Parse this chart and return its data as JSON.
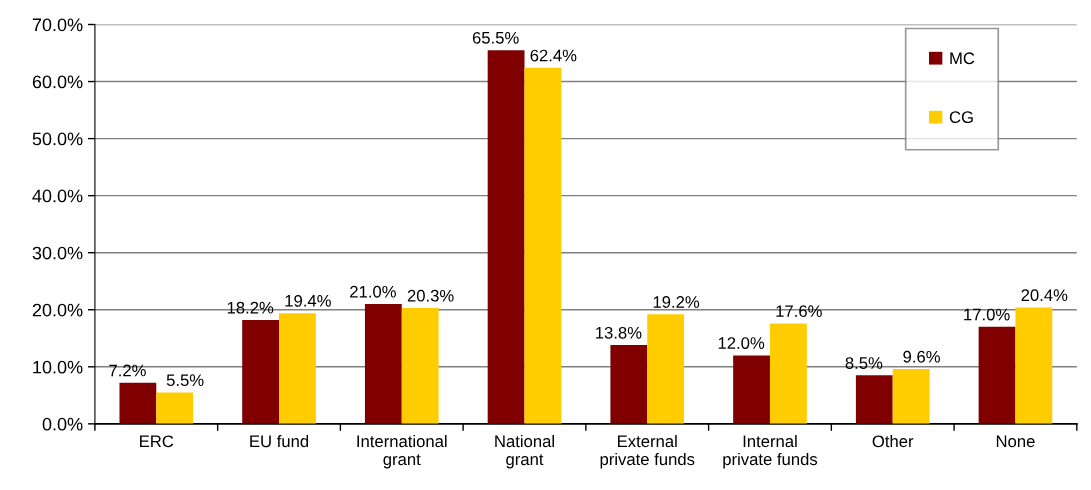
{
  "chart_data": {
    "type": "bar",
    "categories": [
      "ERC",
      "EU fund",
      "International grant",
      "National grant",
      "External private funds",
      "Internal private funds",
      "Other",
      "None"
    ],
    "series": [
      {
        "name": "MC",
        "color": "#800000",
        "values": [
          7.2,
          18.2,
          21.0,
          65.5,
          13.8,
          12.0,
          8.5,
          17.0
        ],
        "value_labels": [
          "7.2%",
          "18.2%",
          "21.0%",
          "65.5%",
          "13.8%",
          "12.0%",
          "8.5%",
          "17.0%"
        ]
      },
      {
        "name": "CG",
        "color": "#ffcc00",
        "values": [
          5.5,
          19.4,
          20.3,
          62.4,
          19.2,
          17.6,
          9.6,
          20.4
        ],
        "value_labels": [
          "5.5%",
          "19.4%",
          "20.3%",
          "62.4%",
          "19.2%",
          "17.6%",
          "9.6%",
          "20.4%"
        ]
      }
    ],
    "ylim": [
      0,
      70
    ],
    "yticks": [
      {
        "value": 0,
        "label": "0.0%"
      },
      {
        "value": 10,
        "label": "10.0%"
      },
      {
        "value": 20,
        "label": "20.0%"
      },
      {
        "value": 30,
        "label": "30.0%"
      },
      {
        "value": 40,
        "label": "40.0%"
      },
      {
        "value": 50,
        "label": "50.0%"
      },
      {
        "value": 60,
        "label": "60.0%"
      },
      {
        "value": 70,
        "label": "70.0%"
      }
    ],
    "grid": "y",
    "legend": "top right"
  }
}
